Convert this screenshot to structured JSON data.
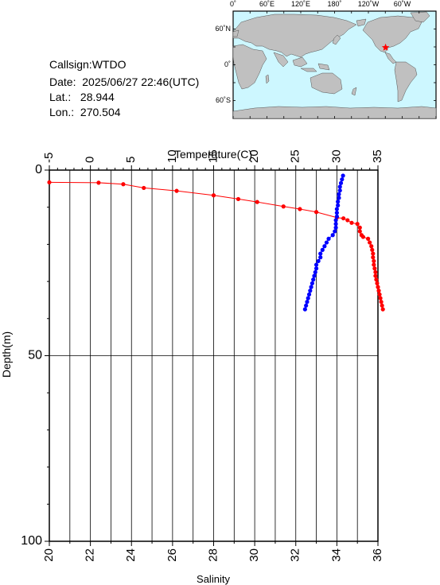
{
  "station": {
    "callsign_label": "Callsign:",
    "callsign": "WTDO",
    "date_label": "Date:",
    "date": "2025/06/27 22:46(UTC)",
    "lat_label": "Lat.:",
    "lat": "28.944",
    "lon_label": "Lon.:",
    "lon": "270.504"
  },
  "map": {
    "lon_labels": [
      "0˚",
      "60˚E",
      "120˚E",
      "180˚",
      "120˚W",
      "60˚W"
    ],
    "lat_labels": [
      "60˚N",
      "0˚",
      "60˚S"
    ],
    "ocean_color": "#cdf7ff",
    "land_color": "#c0c0c0",
    "marker_color": "#ff0000",
    "marker": {
      "lon": 270.504,
      "lat": 28.944
    }
  },
  "chart_data": {
    "type": "line",
    "ylabel": "Depth(m)",
    "top_axis_label": "Temperature(C)",
    "bottom_axis_label": "Salinity",
    "ylim": [
      0,
      100
    ],
    "y_inverted": true,
    "yticks": [
      0,
      50,
      100
    ],
    "temperature_ticks": [
      -5,
      0,
      5,
      10,
      15,
      20,
      25,
      30,
      35
    ],
    "temperature_lim": [
      -5,
      35
    ],
    "salinity_ticks": [
      20,
      22,
      24,
      26,
      28,
      30,
      32,
      34,
      36
    ],
    "salinity_lim": [
      20,
      36
    ],
    "series": [
      {
        "axis": "temperature",
        "color": "#ff0000",
        "points": [
          [
            -5.0,
            3.3
          ],
          [
            1.0,
            3.4
          ],
          [
            4.0,
            3.8
          ],
          [
            6.5,
            4.8
          ],
          [
            10.5,
            5.6
          ],
          [
            15.0,
            6.8
          ],
          [
            18.0,
            7.8
          ],
          [
            20.3,
            8.6
          ],
          [
            23.5,
            9.8
          ],
          [
            25.5,
            10.5
          ],
          [
            27.5,
            11.3
          ],
          [
            30.0,
            12.8
          ],
          [
            30.8,
            13.0
          ],
          [
            31.3,
            13.5
          ],
          [
            31.8,
            14.2
          ],
          [
            32.5,
            14.5
          ],
          [
            32.8,
            15.5
          ],
          [
            32.8,
            16.5
          ],
          [
            33.0,
            17.5
          ],
          [
            33.2,
            18.0
          ],
          [
            33.8,
            18.5
          ],
          [
            34.0,
            19.5
          ],
          [
            34.2,
            20.5
          ],
          [
            34.3,
            21.5
          ],
          [
            34.4,
            22.5
          ],
          [
            34.4,
            23.5
          ],
          [
            34.5,
            24.5
          ],
          [
            34.5,
            25.5
          ],
          [
            34.6,
            26.5
          ],
          [
            34.7,
            27.5
          ],
          [
            34.7,
            28.5
          ],
          [
            34.8,
            29.5
          ],
          [
            34.9,
            30.5
          ],
          [
            35.0,
            31.5
          ],
          [
            35.1,
            32.5
          ],
          [
            35.2,
            33.5
          ],
          [
            35.3,
            34.5
          ],
          [
            35.4,
            35.5
          ],
          [
            35.5,
            36.5
          ],
          [
            35.6,
            37.5
          ]
        ]
      },
      {
        "axis": "salinity",
        "color": "#0000ff",
        "points": [
          [
            34.3,
            1.5
          ],
          [
            34.25,
            2.5
          ],
          [
            34.2,
            3.5
          ],
          [
            34.15,
            4.5
          ],
          [
            34.15,
            5.5
          ],
          [
            34.1,
            6.5
          ],
          [
            34.1,
            7.5
          ],
          [
            34.05,
            8.5
          ],
          [
            34.05,
            9.5
          ],
          [
            34.0,
            10.5
          ],
          [
            34.0,
            11.5
          ],
          [
            34.0,
            12.5
          ],
          [
            33.95,
            13.5
          ],
          [
            33.95,
            14.5
          ],
          [
            33.95,
            15.5
          ],
          [
            33.9,
            16.5
          ],
          [
            33.8,
            17.5
          ],
          [
            33.6,
            18.5
          ],
          [
            33.5,
            19.5
          ],
          [
            33.4,
            20.5
          ],
          [
            33.3,
            21.5
          ],
          [
            33.2,
            22.5
          ],
          [
            33.2,
            23.5
          ],
          [
            33.1,
            24.5
          ],
          [
            33.0,
            25.5
          ],
          [
            33.0,
            26.5
          ],
          [
            32.95,
            27.5
          ],
          [
            32.9,
            28.5
          ],
          [
            32.85,
            29.5
          ],
          [
            32.8,
            30.5
          ],
          [
            32.75,
            31.5
          ],
          [
            32.7,
            32.5
          ],
          [
            32.65,
            33.5
          ],
          [
            32.6,
            34.5
          ],
          [
            32.55,
            35.5
          ],
          [
            32.5,
            36.5
          ],
          [
            32.45,
            37.5
          ]
        ]
      }
    ]
  }
}
